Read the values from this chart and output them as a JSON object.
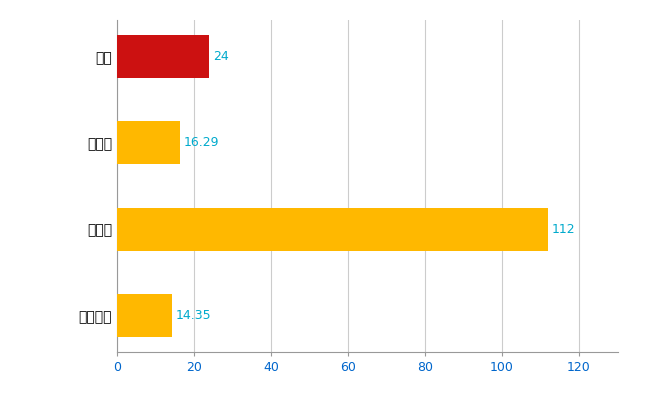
{
  "categories": [
    "全国平均",
    "県最大",
    "県平均",
    "南区"
  ],
  "values": [
    14.35,
    112,
    16.29,
    24
  ],
  "bar_colors": [
    "#FFB800",
    "#FFB800",
    "#FFB800",
    "#CC1111"
  ],
  "labels": [
    "14.35",
    "112",
    "16.29",
    "24"
  ],
  "xlim": [
    0,
    130
  ],
  "xticks": [
    0,
    20,
    40,
    60,
    80,
    100,
    120
  ],
  "background_color": "#ffffff",
  "grid_color": "#cccccc",
  "label_color": "#00AACC",
  "label_fontsize": 9,
  "tick_fontsize": 9,
  "ytick_fontsize": 10,
  "bar_height": 0.5
}
